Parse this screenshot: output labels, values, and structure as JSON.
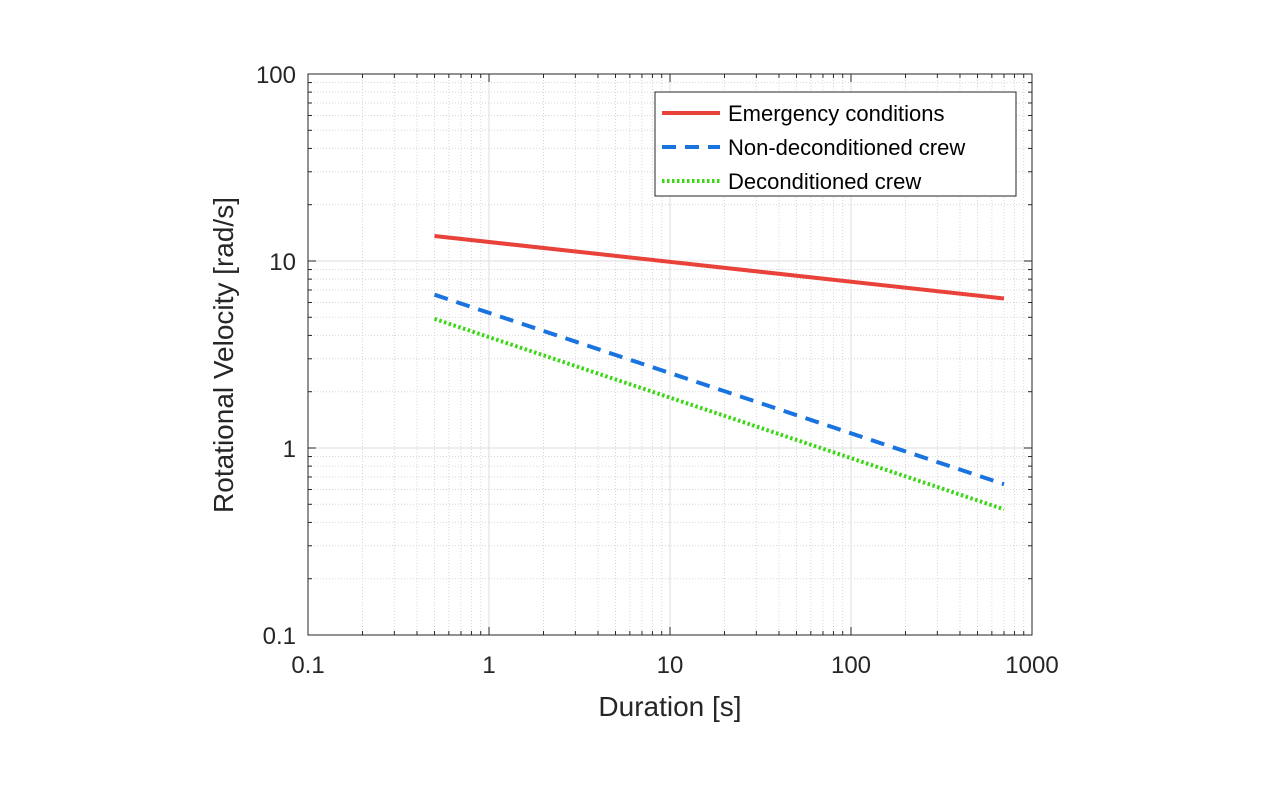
{
  "chart_data": {
    "type": "line",
    "xlabel": "Duration [s]",
    "ylabel": "Rotational Velocity [rad/s]",
    "xscale": "log",
    "yscale": "log",
    "xlim": [
      0.1,
      1000
    ],
    "ylim": [
      0.1,
      100
    ],
    "xticks": [
      0.1,
      1,
      10,
      100,
      1000
    ],
    "xtick_labels": [
      "0.1",
      "1",
      "10",
      "100",
      "1000"
    ],
    "yticks": [
      0.1,
      1,
      10,
      100
    ],
    "ytick_labels": [
      "0.1",
      "1",
      "10",
      "100"
    ],
    "grid": true,
    "minor_grid": true,
    "legend_position": "top-right",
    "series": [
      {
        "name": "Emergency conditions",
        "x": [
          0.5,
          700
        ],
        "y": [
          13.6,
          6.3
        ],
        "color": "#e8423a",
        "style": "solid"
      },
      {
        "name": "Non-deconditioned crew",
        "x": [
          0.5,
          700
        ],
        "y": [
          6.6,
          0.64
        ],
        "color": "#1a74e0",
        "style": "dashed"
      },
      {
        "name": "Deconditioned crew",
        "x": [
          0.5,
          700
        ],
        "y": [
          4.9,
          0.47
        ],
        "color": "#3bd615",
        "style": "dotted"
      }
    ]
  }
}
